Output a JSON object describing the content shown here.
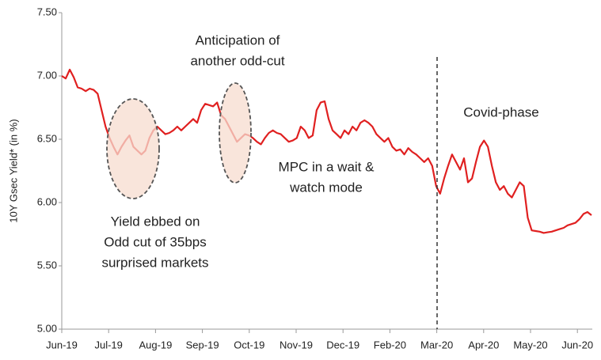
{
  "chart_data": {
    "type": "line",
    "y_label": "10Y Gsec Yield* (in %)",
    "color": "#e02020",
    "ylim": [
      5.0,
      7.5
    ],
    "yticks": [
      {
        "value": 5.0,
        "label": "5.00"
      },
      {
        "value": 5.5,
        "label": "5.50"
      },
      {
        "value": 6.0,
        "label": "6.00"
      },
      {
        "value": 6.5,
        "label": "6.50"
      },
      {
        "value": 7.0,
        "label": "7.00"
      },
      {
        "value": 7.5,
        "label": "7.50"
      }
    ],
    "xlim": [
      0,
      11.3
    ],
    "xticks": [
      {
        "value": 0,
        "label": "Jun-19"
      },
      {
        "value": 1,
        "label": "Jul-19"
      },
      {
        "value": 2,
        "label": "Aug-19"
      },
      {
        "value": 3,
        "label": "Sep-19"
      },
      {
        "value": 4,
        "label": "Oct-19"
      },
      {
        "value": 5,
        "label": "Nov-19"
      },
      {
        "value": 6,
        "label": "Dec-19"
      },
      {
        "value": 7,
        "label": "Feb-20"
      },
      {
        "value": 8,
        "label": "Mar-20"
      },
      {
        "value": 9,
        "label": "Apr-20"
      },
      {
        "value": 10,
        "label": "May-20"
      },
      {
        "value": 11,
        "label": "Jun-20"
      }
    ],
    "values": [
      7.0,
      6.98,
      7.05,
      6.99,
      6.91,
      6.9,
      6.88,
      6.9,
      6.89,
      6.86,
      6.73,
      6.6,
      6.51,
      6.44,
      6.38,
      6.44,
      6.49,
      6.53,
      6.44,
      6.41,
      6.38,
      6.41,
      6.51,
      6.57,
      6.6,
      6.57,
      6.54,
      6.55,
      6.57,
      6.6,
      6.57,
      6.6,
      6.63,
      6.66,
      6.63,
      6.73,
      6.78,
      6.77,
      6.76,
      6.79,
      6.69,
      6.66,
      6.6,
      6.54,
      6.48,
      6.51,
      6.54,
      6.53,
      6.51,
      6.48,
      6.46,
      6.51,
      6.55,
      6.57,
      6.55,
      6.54,
      6.51,
      6.48,
      6.49,
      6.51,
      6.6,
      6.57,
      6.51,
      6.53,
      6.73,
      6.79,
      6.8,
      6.66,
      6.57,
      6.54,
      6.51,
      6.57,
      6.54,
      6.6,
      6.57,
      6.63,
      6.65,
      6.63,
      6.6,
      6.54,
      6.51,
      6.48,
      6.51,
      6.44,
      6.41,
      6.42,
      6.38,
      6.43,
      6.4,
      6.38,
      6.35,
      6.32,
      6.35,
      6.29,
      6.13,
      6.07,
      6.19,
      6.29,
      6.38,
      6.32,
      6.26,
      6.35,
      6.16,
      6.19,
      6.32,
      6.44,
      6.49,
      6.44,
      6.29,
      6.16,
      6.1,
      6.13,
      6.07,
      6.04,
      6.1,
      6.16,
      6.13,
      5.88,
      5.78,
      5.775,
      5.77,
      5.76,
      5.765,
      5.77,
      5.78,
      5.79,
      5.8,
      5.82,
      5.83,
      5.84,
      5.87,
      5.91,
      5.925,
      5.9
    ],
    "annotations": [
      {
        "lines": [
          "Anticipation of",
          "another odd-cut"
        ]
      },
      {
        "lines": [
          "Covid-phase"
        ]
      },
      {
        "lines": [
          "MPC in a wait &",
          "watch mode"
        ]
      },
      {
        "lines": [
          "Yield ebbed on",
          "Odd cut of 35bps",
          "surprised markets"
        ]
      }
    ]
  }
}
